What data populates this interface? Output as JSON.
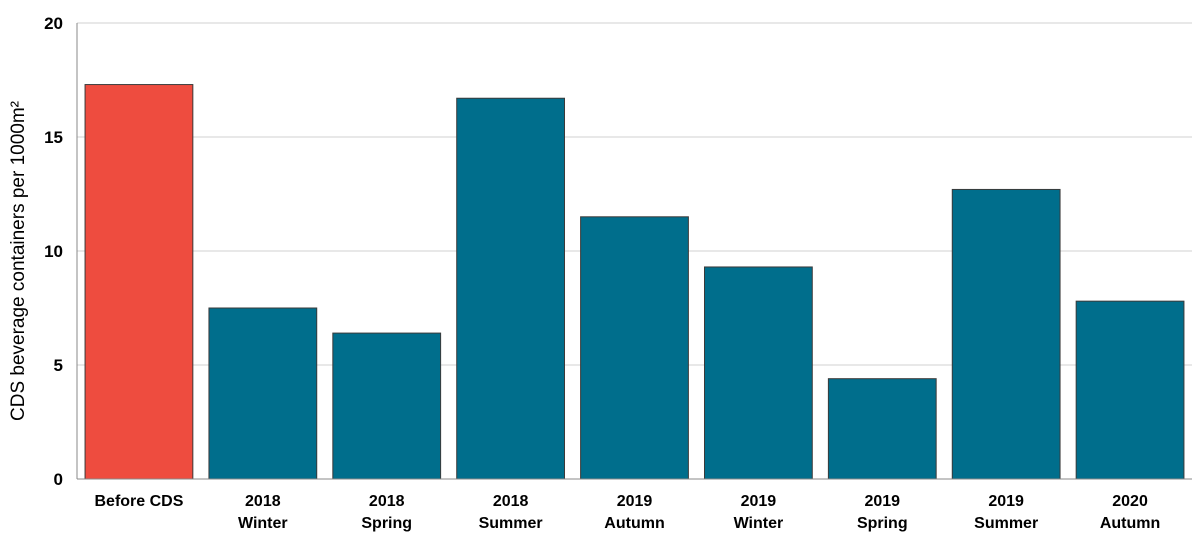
{
  "chart_data": {
    "type": "bar",
    "title": "",
    "xlabel": "",
    "ylabel": "CDS beverage containers per 1000m²",
    "ylim": [
      0,
      20
    ],
    "yticks": [
      0,
      5,
      10,
      15,
      20
    ],
    "grid": true,
    "categories": [
      [
        "Before CDS"
      ],
      [
        "2018",
        "Winter"
      ],
      [
        "2018",
        "Spring"
      ],
      [
        "2018",
        "Summer"
      ],
      [
        "2019",
        "Autumn"
      ],
      [
        "2019",
        "Winter"
      ],
      [
        "2019",
        "Spring"
      ],
      [
        "2019",
        "Summer"
      ],
      [
        "2020",
        "Autumn"
      ]
    ],
    "values": [
      17.3,
      7.5,
      6.4,
      16.7,
      11.5,
      9.3,
      4.4,
      12.7,
      7.8
    ],
    "colors": [
      "#ee4c3f",
      "#006e8c",
      "#006e8c",
      "#006e8c",
      "#006e8c",
      "#006e8c",
      "#006e8c",
      "#006e8c",
      "#006e8c"
    ]
  }
}
